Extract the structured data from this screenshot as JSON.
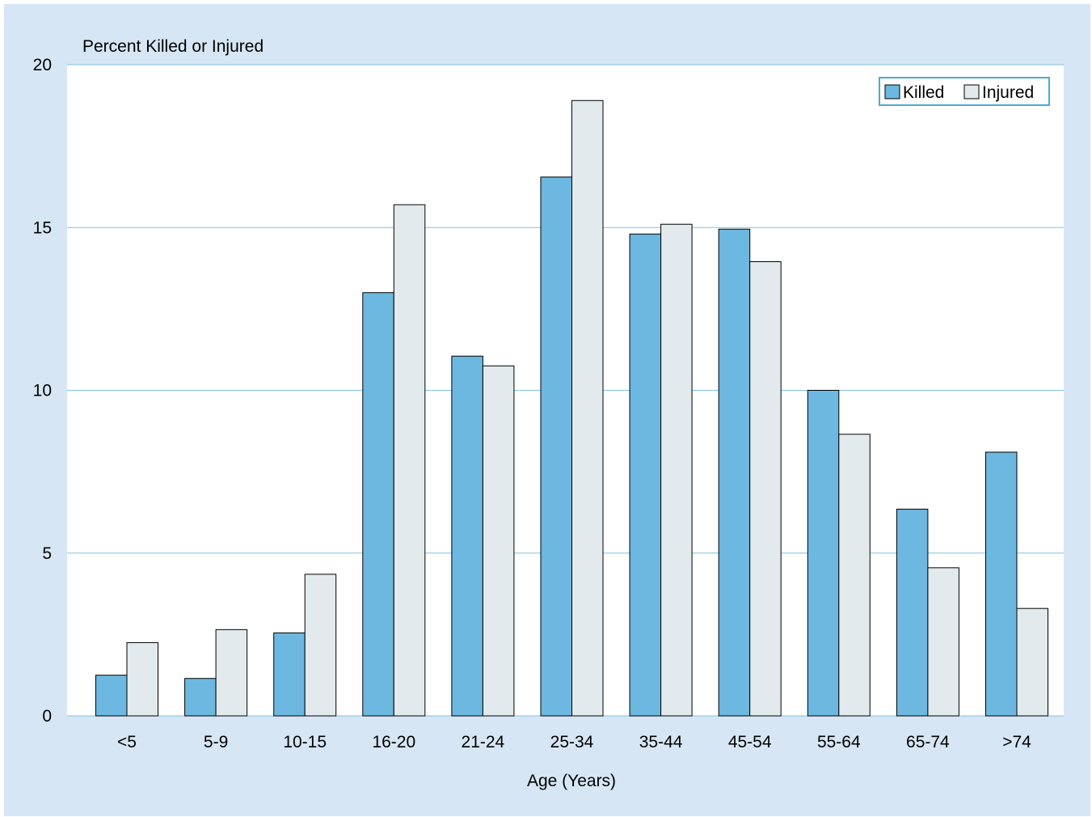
{
  "chart_data": {
    "type": "bar",
    "title": "",
    "ylabel": "Percent Killed or Injured",
    "xlabel": "Age (Years)",
    "ylim": [
      0,
      20
    ],
    "yticks": [
      0,
      5,
      10,
      15,
      20
    ],
    "grid": true,
    "legend_position": "top-right",
    "categories": [
      "<5",
      "5-9",
      "10-15",
      "16-20",
      "21-24",
      "25-34",
      "35-44",
      "45-54",
      "55-64",
      "65-74",
      ">74"
    ],
    "series": [
      {
        "name": "Killed",
        "color": "#6cb8e0",
        "values": [
          1.25,
          1.15,
          2.55,
          13.0,
          11.05,
          16.55,
          14.8,
          14.95,
          10.0,
          6.35,
          8.1
        ]
      },
      {
        "name": "Injured",
        "color": "#e2eaed",
        "values": [
          2.25,
          2.65,
          4.35,
          15.7,
          10.75,
          18.9,
          15.1,
          13.95,
          8.65,
          4.55,
          3.3
        ]
      }
    ]
  },
  "colors": {
    "frame_background": "#d6e6f4",
    "plot_background": "#ffffff",
    "gridline": "#7fc3e3",
    "legend_border": "#4aaad8"
  }
}
